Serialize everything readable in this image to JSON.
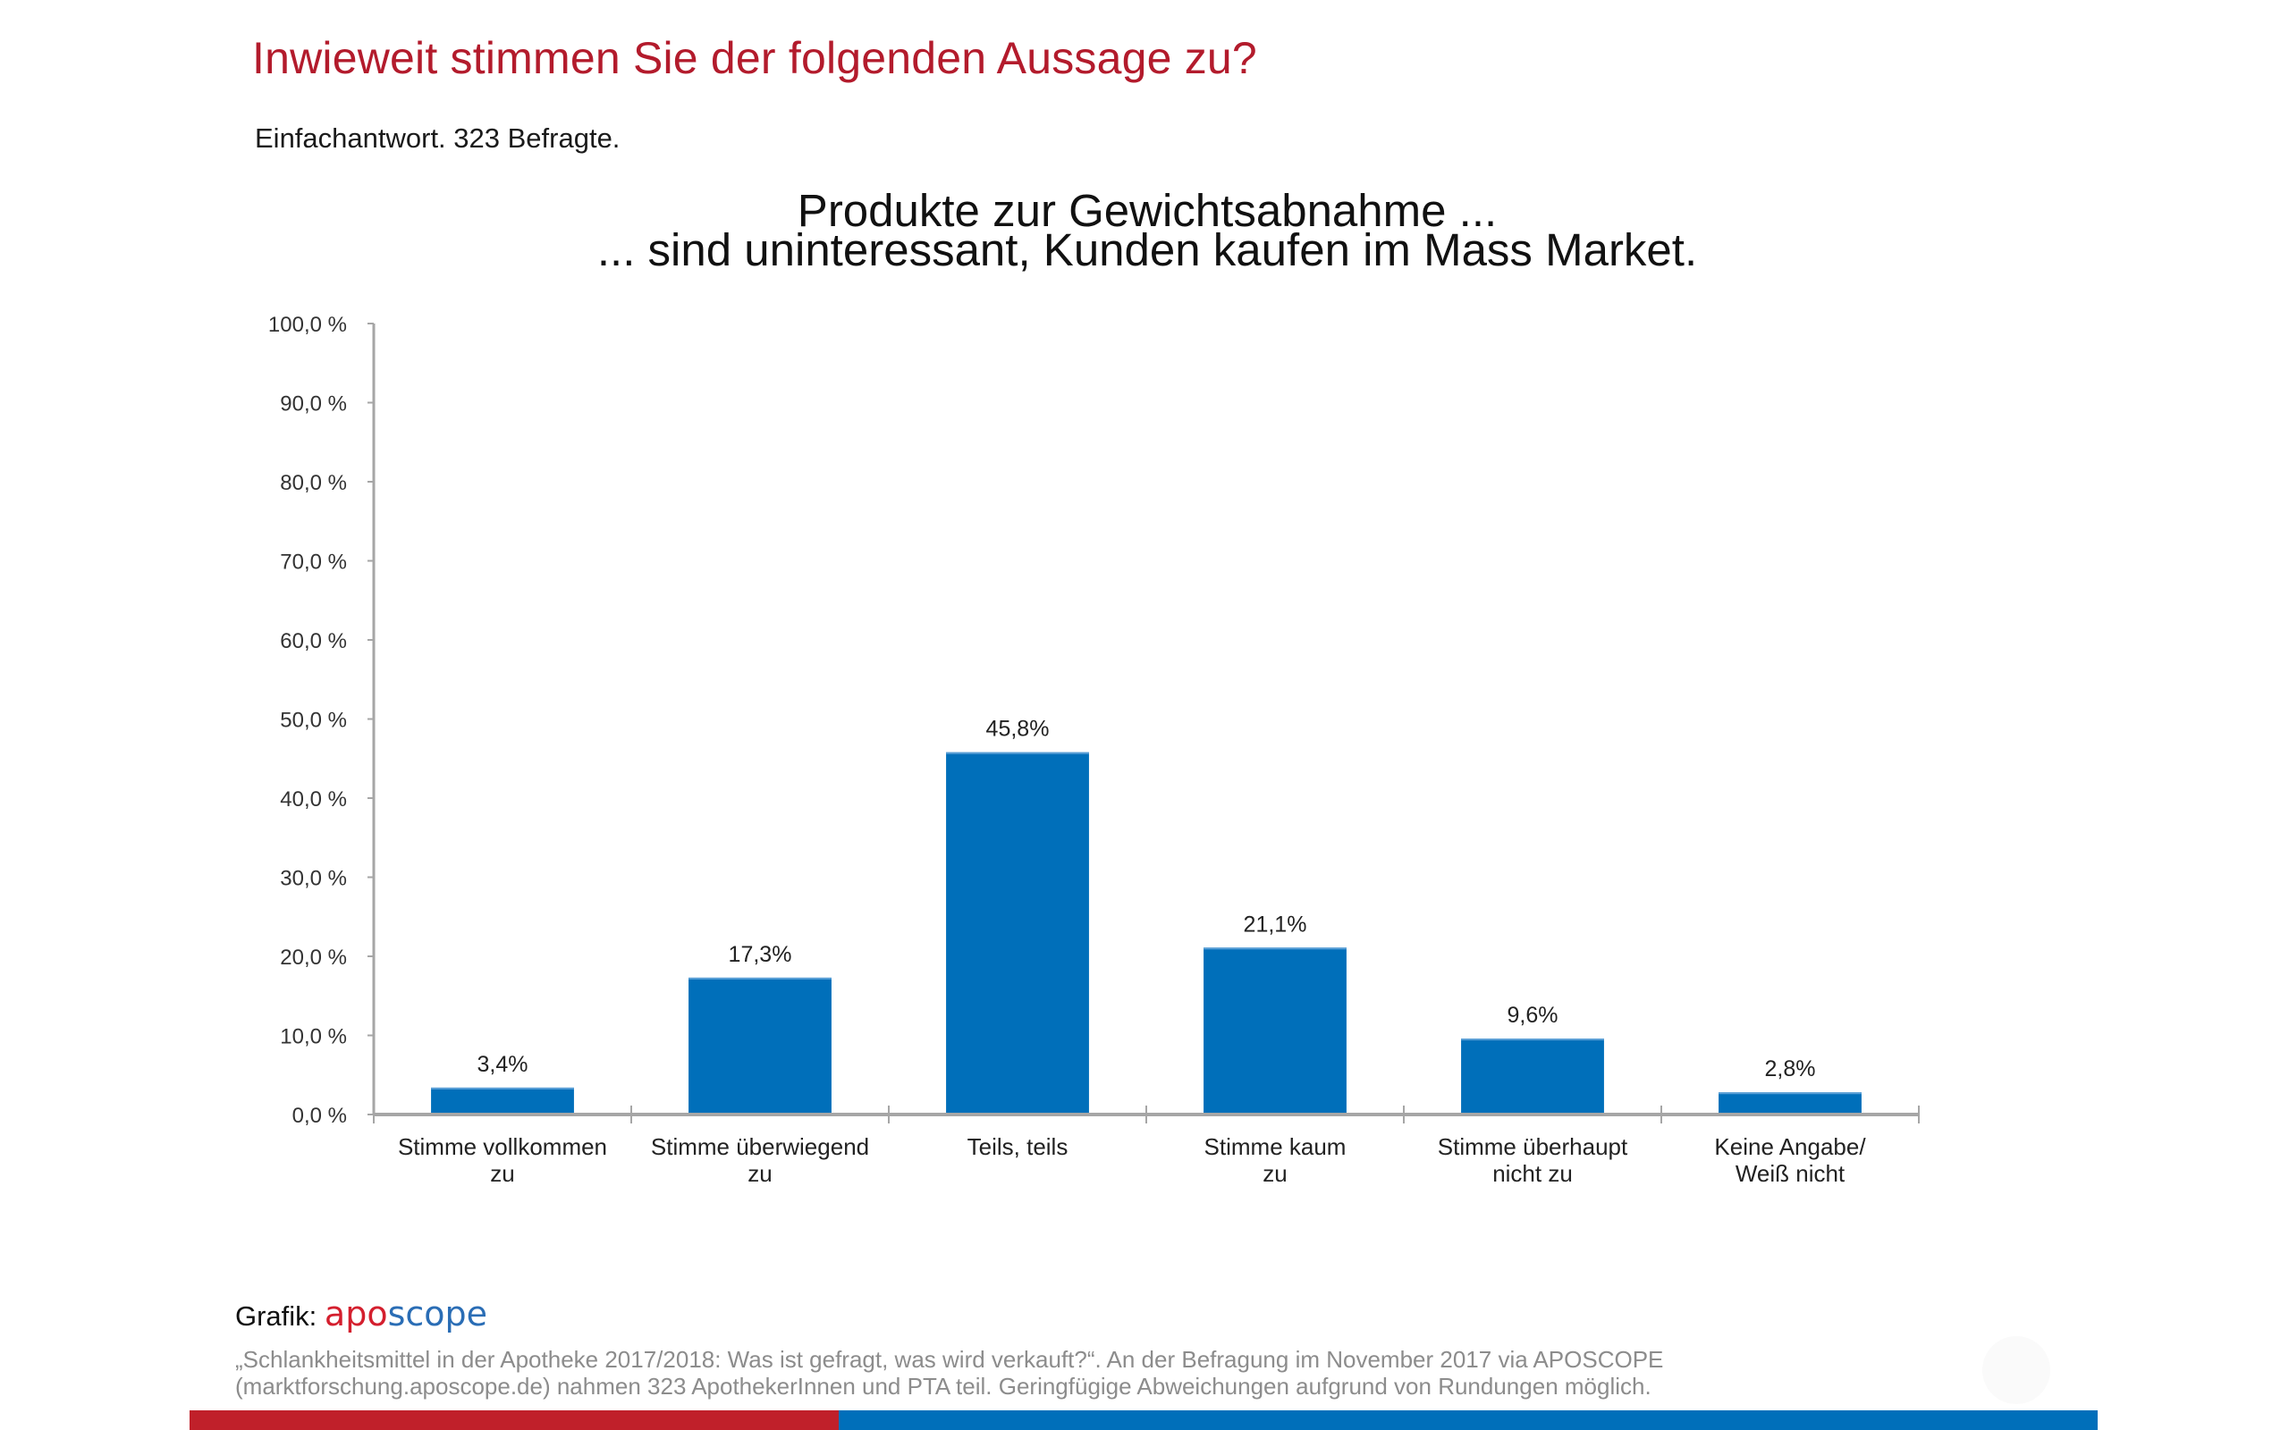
{
  "header": {
    "title": "Inwieweit stimmen Sie der folgenden Aussage zu?",
    "subtitle": "Einfachantwort. 323 Befragte."
  },
  "chart_data": {
    "type": "bar",
    "title_lines": [
      "Produkte zur Gewichtsabnahme ...",
      "... sind uninteressant, Kunden kaufen im Mass Market."
    ],
    "categories": [
      [
        "Stimme vollkommen",
        "zu"
      ],
      [
        "Stimme überwiegend",
        "zu"
      ],
      [
        "Teils, teils"
      ],
      [
        "Stimme kaum",
        "zu"
      ],
      [
        "Stimme überhaupt",
        "nicht zu"
      ],
      [
        "Keine Angabe/",
        "Weiß nicht"
      ]
    ],
    "values": [
      3.4,
      17.3,
      45.8,
      21.1,
      9.6,
      2.8
    ],
    "value_labels": [
      "3,4%",
      "17,3%",
      "45,8%",
      "21,1%",
      "9,6%",
      "2,8%"
    ],
    "unit": "%",
    "xlabel": "",
    "ylabel": "",
    "ylim": [
      0,
      100
    ],
    "yticks": [
      0,
      10,
      20,
      30,
      40,
      50,
      60,
      70,
      80,
      90,
      100
    ],
    "ytick_labels": [
      "0,0 %",
      "10,0 %",
      "20,0 %",
      "30,0 %",
      "40,0 %",
      "50,0 %",
      "60,0 %",
      "70,0 %",
      "80,0 %",
      "90,0 %",
      "100,0 %"
    ],
    "grid": false,
    "legend": "none",
    "bar_color": "#006fba",
    "axis_color": "#a6a6a6"
  },
  "footer": {
    "credit_label": "Grafik:",
    "logo_part1": "apo",
    "logo_part2": "scope",
    "logo_color_1": "#d41f2e",
    "logo_color_2": "#2a6db5",
    "source_lines": [
      "„Schlankheitsmittel in der Apotheke 2017/2018: Was ist gefragt, was wird verkauft?“. An der Befragung im November 2017 via APOSCOPE",
      "(marktforschung.aposcope.de) nahmen 323 ApothekerInnen und PTA teil. Geringfügige Abweichungen aufgrund von Rundungen möglich."
    ]
  },
  "brand_colors": {
    "red": "#c0202a",
    "blue": "#006fba"
  }
}
